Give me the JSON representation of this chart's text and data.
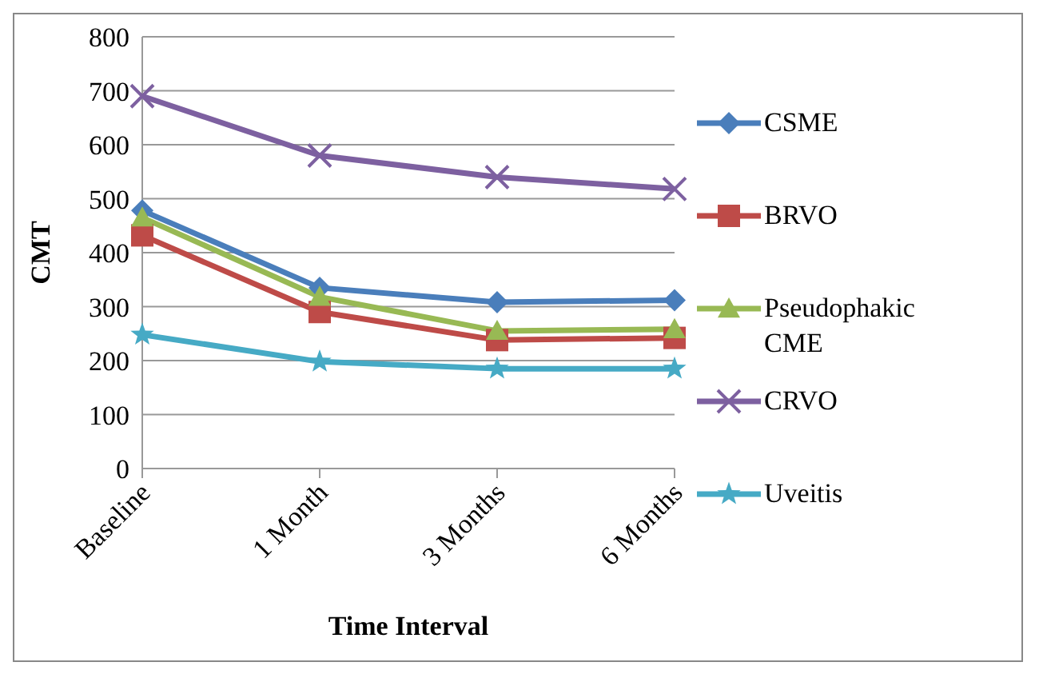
{
  "chart_data": {
    "type": "line",
    "xlabel": "Time Interval",
    "ylabel": "CMT",
    "categories": [
      "Baseline",
      "1 Month",
      "3 Months",
      "6 Months"
    ],
    "series": [
      {
        "name": "CSME",
        "color": "#4a7ebb",
        "marker": "diamond",
        "values": [
          478,
          335,
          308,
          312
        ]
      },
      {
        "name": "BRVO",
        "color": "#be4b48",
        "marker": "square",
        "values": [
          432,
          290,
          238,
          242
        ]
      },
      {
        "name": "Pseudophakic CME",
        "color": "#98b954",
        "marker": "triangle",
        "values": [
          465,
          318,
          255,
          258
        ]
      },
      {
        "name": "CRVO",
        "color": "#7d60a0",
        "marker": "cross",
        "values": [
          690,
          580,
          540,
          518
        ]
      },
      {
        "name": "Uveitis",
        "color": "#46aac5",
        "marker": "star",
        "values": [
          248,
          198,
          185,
          185
        ]
      }
    ],
    "ylim": [
      0,
      800
    ],
    "yticks": [
      0,
      100,
      200,
      300,
      400,
      500,
      600,
      700,
      800
    ],
    "grid": "y",
    "legend": "right",
    "line_style": "solid"
  }
}
